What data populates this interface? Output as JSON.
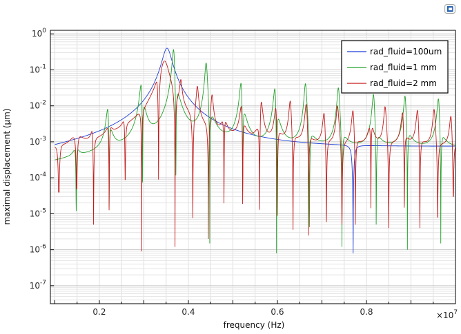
{
  "app": {
    "icon": "comsol-icon"
  },
  "chart_data": {
    "type": "line",
    "title": "",
    "xlabel": "frequency (Hz)",
    "ylabel": "maximal displacement (µm)",
    "x_multiplier_label": "×10",
    "x_multiplier_exp": "7",
    "xlim": [
      0.09,
      1.0
    ],
    "ylim_log10": [
      -7.5,
      0.1
    ],
    "yscale": "log",
    "grid": true,
    "legend_position": "top-right",
    "x_ticks": [
      0.2,
      0.4,
      0.6,
      0.8
    ],
    "x_tick_labels": [
      "0.2",
      "0.4",
      "0.6",
      "0.8"
    ],
    "y_tick_exponents": [
      0,
      -1,
      -2,
      -3,
      -4,
      -5,
      -6,
      -7
    ],
    "y_tick_base": "10",
    "series": [
      {
        "name": "rad_fluid=100um",
        "color": "#1f3fd6",
        "baseline_at_min": 0.0002,
        "resonances": [
          [
            0.352,
            0.7,
            0.3
          ],
          [
            0.862,
            0.025,
            0.025
          ]
        ],
        "antiresonances": [
          [
            0.77,
            4.5e-07
          ]
        ]
      },
      {
        "name": "rad_fluid=1 mm",
        "color": "#22a02a",
        "baseline_at_min": 0.0002,
        "resonances": [
          [
            0.148,
            0.003,
            0.0003
          ],
          [
            0.22,
            0.025,
            0.0007
          ],
          [
            0.295,
            0.12,
            0.002
          ],
          [
            0.367,
            0.6,
            0.02
          ],
          [
            0.44,
            0.2,
            0.005
          ],
          [
            0.519,
            0.1,
            0.002
          ],
          [
            0.595,
            0.07,
            0.0015
          ],
          [
            0.663,
            0.05,
            0.0012
          ],
          [
            0.737,
            0.04,
            0.0011
          ],
          [
            0.816,
            0.03,
            0.001
          ],
          [
            0.887,
            0.03,
            0.0009
          ],
          [
            0.962,
            0.025,
            0.0008
          ]
        ],
        "antiresonances": [
          [
            0.148,
            1.2e-05
          ],
          [
            0.222,
            2.5e-06
          ],
          [
            0.297,
            3e-06
          ],
          [
            0.372,
            4e-07
          ],
          [
            0.448,
            1.5e-06
          ],
          [
            0.522,
            3e-07
          ],
          [
            0.598,
            8e-07
          ],
          [
            0.672,
            1e-06
          ],
          [
            0.745,
            1.2e-06
          ],
          [
            0.822,
            1.5e-06
          ],
          [
            0.892,
            1e-06
          ],
          [
            0.967,
            1.5e-06
          ]
        ]
      },
      {
        "name": "rad_fluid=2 mm",
        "color": "#c41a1a",
        "baseline_at_min": 0.0002,
        "resonances": [
          [
            0.109,
            0.0008,
            0.0004
          ],
          [
            0.149,
            0.0018,
            0.0004
          ],
          [
            0.185,
            0.005,
            0.0005
          ],
          [
            0.222,
            0.012,
            0.0006
          ],
          [
            0.257,
            0.012,
            0.0008
          ],
          [
            0.295,
            0.015,
            0.001
          ],
          [
            0.33,
            0.05,
            0.002
          ],
          [
            0.346,
            0.3,
            0.1
          ],
          [
            0.383,
            0.05,
            0.003
          ],
          [
            0.42,
            0.04,
            0.002
          ],
          [
            0.453,
            0.025,
            0.0015
          ],
          [
            0.48,
            0.02,
            0.0012
          ],
          [
            0.52,
            0.03,
            0.0012
          ],
          [
            0.563,
            0.03,
            0.0011
          ],
          [
            0.597,
            0.02,
            0.001
          ],
          [
            0.629,
            0.02,
            0.001
          ],
          [
            0.665,
            0.018,
            0.0009
          ],
          [
            0.705,
            0.01,
            0.0008
          ],
          [
            0.735,
            0.012,
            0.0008
          ],
          [
            0.77,
            0.012,
            0.0007
          ],
          [
            0.81,
            0.015,
            0.0007
          ],
          [
            0.842,
            0.012,
            0.0007
          ],
          [
            0.882,
            0.015,
            0.0006
          ],
          [
            0.915,
            0.012,
            0.0006
          ],
          [
            0.952,
            0.01,
            0.0006
          ],
          [
            0.99,
            0.008,
            0.0005
          ]
        ],
        "antiresonances": [
          [
            0.109,
            4e-05
          ],
          [
            0.149,
            5e-05
          ],
          [
            0.187,
            5e-06
          ],
          [
            0.222,
            6e-06
          ],
          [
            0.258,
            9e-05
          ],
          [
            0.295,
            9e-07
          ],
          [
            0.333,
            5e-06
          ],
          [
            0.37,
            1.2e-06
          ],
          [
            0.41,
            3e-06
          ],
          [
            0.445,
            2e-06
          ],
          [
            0.48,
            8e-06
          ],
          [
            0.522,
            2e-06
          ],
          [
            0.56,
            1.3e-05
          ],
          [
            0.6,
            2e-06
          ],
          [
            0.635,
            1.8e-06
          ],
          [
            0.67,
            2.5e-06
          ],
          [
            0.71,
            6e-06
          ],
          [
            0.745,
            5e-06
          ],
          [
            0.775,
            5e-06
          ],
          [
            0.81,
            1.2e-05
          ],
          [
            0.85,
            4e-06
          ],
          [
            0.885,
            1.5e-05
          ],
          [
            0.92,
            4e-06
          ],
          [
            0.96,
            8e-06
          ],
          [
            0.995,
            3e-05
          ]
        ]
      }
    ]
  }
}
